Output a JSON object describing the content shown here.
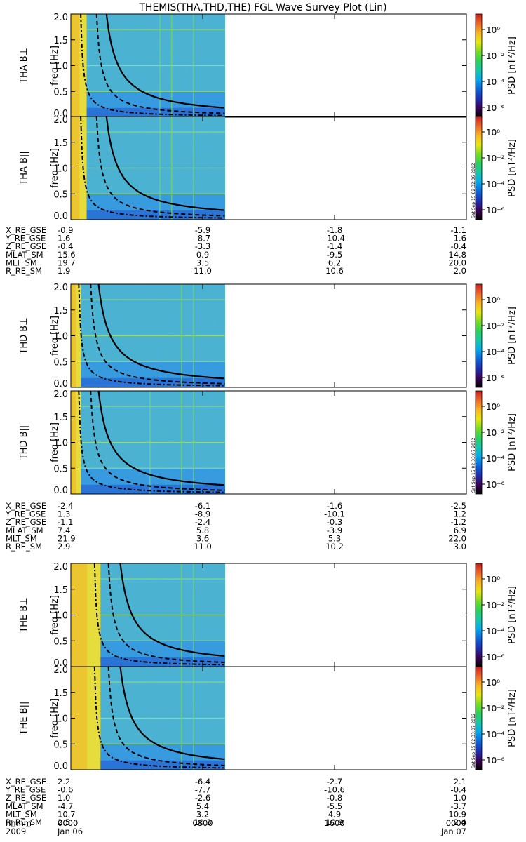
{
  "title": "THEMIS(THA,THD,THE) FGL Wave Survey Plot (Lin)",
  "colors": {
    "colormap": [
      "#000000",
      "#3c005a",
      "#1e2eb4",
      "#0a64dc",
      "#00aaf0",
      "#14c8aa",
      "#28d25a",
      "#78dc1e",
      "#e6e60a",
      "#fab41e",
      "#f06428",
      "#c81e1e"
    ],
    "background": "#ffffff"
  },
  "colorbar": {
    "label": "PSD [nT²/Hz]",
    "ticks": [
      "10⁰",
      "10⁻²",
      "10⁻⁴",
      "10⁻⁶"
    ]
  },
  "chart_data": {
    "type": "heatmap",
    "x_range": [
      "2009 Jan 06 0000",
      "2009 Jan 07 0000"
    ],
    "x_ticks": [
      {
        "time": "0000",
        "date": "Jan 06"
      },
      {
        "time": "0800",
        "date": ""
      },
      {
        "time": "1600",
        "date": ""
      },
      {
        "time": "0000",
        "date": "Jan 07"
      }
    ],
    "x_tick_label": "hhmm",
    "year_label": "2009",
    "data_end_fraction": 0.39,
    "ylim": [
      0,
      2.0
    ],
    "yticks": [
      "0.0",
      "0.5",
      "1.0",
      "1.5",
      "2.0"
    ],
    "ylabel": "freq [Hz]",
    "panels": [
      {
        "label": "THA B⊥",
        "probe": "THA",
        "comp": "perp",
        "stamp": "",
        "band_end": 0.04,
        "c1": 0.09,
        "c2": 0.065,
        "c3": 0.025,
        "spikes": [
          0.225,
          0.255,
          0.31
        ]
      },
      {
        "label": "THA B||",
        "probe": "THA",
        "comp": "para",
        "stamp": "Sat Sep 15 02:32:06 2012",
        "band_end": 0.04,
        "c1": 0.09,
        "c2": 0.065,
        "c3": 0.025,
        "spikes": [
          0.225,
          0.255,
          0.31
        ]
      },
      {
        "label": "THD B⊥",
        "probe": "THD",
        "comp": "perp",
        "stamp": "",
        "band_end": 0.025,
        "c1": 0.07,
        "c2": 0.05,
        "c3": 0.02,
        "spikes": [
          0.28,
          0.31
        ]
      },
      {
        "label": "THD B||",
        "probe": "THD",
        "comp": "para",
        "stamp": "Sat Sep 15 02:33:07 2012",
        "band_end": 0.025,
        "c1": 0.07,
        "c2": 0.05,
        "c3": 0.02,
        "spikes": [
          0.2,
          0.28,
          0.31
        ]
      },
      {
        "label": "THE B⊥",
        "probe": "THE",
        "comp": "perp",
        "stamp": "",
        "band_end": 0.075,
        "c1": 0.125,
        "c2": 0.095,
        "c3": 0.06,
        "spikes": [
          0.28,
          0.31
        ]
      },
      {
        "label": "THE B||",
        "probe": "THE",
        "comp": "para",
        "stamp": "Sat Sep 15 02:33:07 2012",
        "band_end": 0.075,
        "c1": 0.125,
        "c2": 0.095,
        "c3": 0.06,
        "spikes": [
          0.28,
          0.31
        ]
      }
    ],
    "ephemeris": [
      {
        "probe": "THA",
        "rows": [
          {
            "name": "X_RE_GSE",
            "values": [
              "-0.9",
              "-5.9",
              "-1.8",
              "-1.1"
            ]
          },
          {
            "name": "Y_RE_GSE",
            "values": [
              "1.6",
              "-8.7",
              "-10.4",
              "1.6"
            ]
          },
          {
            "name": "Z_RE_GSE",
            "values": [
              "-0.4",
              "-3.3",
              "-1.4",
              "-0.4"
            ]
          },
          {
            "name": "MLAT_SM",
            "values": [
              "15.6",
              "0.9",
              "-9.5",
              "14.8"
            ]
          },
          {
            "name": "MLT_SM",
            "values": [
              "19.7",
              "3.5",
              "6.2",
              "20.0"
            ]
          },
          {
            "name": "R_RE_SM",
            "values": [
              "1.9",
              "11.0",
              "10.6",
              "2.0"
            ]
          }
        ]
      },
      {
        "probe": "THD",
        "rows": [
          {
            "name": "X_RE_GSE",
            "values": [
              "-2.4",
              "-6.1",
              "-1.6",
              "-2.5"
            ]
          },
          {
            "name": "Y_RE_GSE",
            "values": [
              "1.3",
              "-8.9",
              "-10.1",
              "1.2"
            ]
          },
          {
            "name": "Z_RE_GSE",
            "values": [
              "-1.1",
              "-2.4",
              "-0.3",
              "-1.2"
            ]
          },
          {
            "name": "MLAT_SM",
            "values": [
              "7.4",
              "5.8",
              "-3.9",
              "6.9"
            ]
          },
          {
            "name": "MLT_SM",
            "values": [
              "21.9",
              "3.6",
              "5.3",
              "22.0"
            ]
          },
          {
            "name": "R_RE_SM",
            "values": [
              "2.9",
              "11.0",
              "10.2",
              "3.0"
            ]
          }
        ]
      },
      {
        "probe": "THE",
        "rows": [
          {
            "name": "X_RE_GSE",
            "values": [
              "2.2",
              "-6.4",
              "-2.7",
              "2.1"
            ]
          },
          {
            "name": "Y_RE_GSE",
            "values": [
              "-0.6",
              "-7.7",
              "-10.6",
              "-0.4"
            ]
          },
          {
            "name": "Z_RE_GSE",
            "values": [
              "1.0",
              "-2.6",
              "-0.8",
              "1.0"
            ]
          },
          {
            "name": "MLAT_SM",
            "values": [
              "-4.7",
              "5.4",
              "-5.5",
              "-3.7"
            ]
          },
          {
            "name": "MLT_SM",
            "values": [
              "10.7",
              "3.2",
              "4.9",
              "10.9"
            ]
          },
          {
            "name": "R_RE_SM",
            "values": [
              "2.5",
              "10.3",
              "10.9",
              "2.4"
            ]
          }
        ]
      }
    ]
  }
}
